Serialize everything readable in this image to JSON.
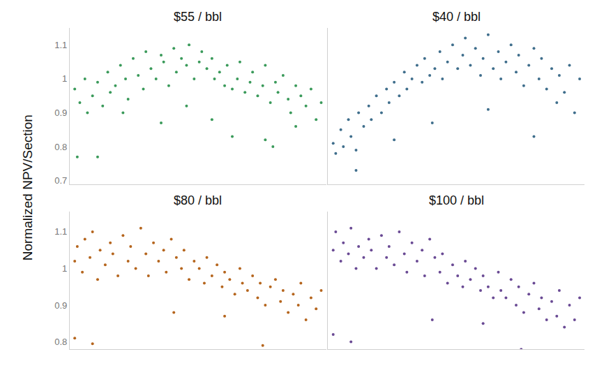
{
  "chart_data": {
    "type": "scatter",
    "y_label": "Normalized NPV/Section",
    "tick_labels": "y",
    "grid": false,
    "marker": "circle",
    "panels": [
      {
        "title": "$55 / bbl",
        "color": "#3a9a5a",
        "xlim": [
          -1,
          100
        ],
        "ylim": [
          0.69,
          1.15
        ],
        "yticks": [
          0.7,
          0.8,
          0.9,
          1,
          1.1
        ],
        "x": [
          1,
          3,
          5,
          6,
          8,
          10,
          12,
          14,
          15,
          17,
          19,
          21,
          22,
          24,
          26,
          28,
          29,
          31,
          33,
          35,
          36,
          38,
          40,
          41,
          43,
          45,
          46,
          48,
          50,
          51,
          53,
          55,
          56,
          58,
          60,
          61,
          63,
          65,
          66,
          68,
          70,
          71,
          73,
          75,
          76,
          78,
          80,
          81,
          83,
          85,
          86,
          88,
          90,
          92,
          94,
          96,
          98,
          2,
          10,
          63,
          76,
          79,
          35,
          55,
          88,
          20,
          45
        ],
        "values": [
          0.97,
          0.93,
          1.0,
          0.9,
          0.95,
          0.99,
          0.92,
          1.02,
          0.96,
          0.98,
          1.04,
          1.0,
          0.94,
          1.06,
          1.01,
          0.97,
          1.08,
          1.03,
          1.0,
          1.07,
          1.05,
          0.98,
          1.09,
          1.02,
          1.06,
          1.04,
          1.1,
          1.0,
          1.05,
          1.08,
          1.03,
          1.06,
          1.0,
          1.02,
          0.98,
          1.04,
          0.97,
          1.0,
          1.05,
          0.96,
          0.99,
          1.02,
          0.95,
          0.98,
          1.04,
          0.93,
          0.99,
          0.96,
          1.01,
          0.94,
          0.9,
          0.98,
          0.95,
          0.92,
          0.97,
          0.88,
          0.93,
          0.77,
          0.77,
          0.83,
          0.82,
          0.8,
          0.87,
          0.88,
          0.86,
          0.9,
          0.92
        ]
      },
      {
        "title": "$40 / bbl",
        "color": "#3f6e8c",
        "xlim": [
          -1,
          100
        ],
        "ylim": [
          0.69,
          1.15
        ],
        "yticks": [
          0.7,
          0.8,
          0.9,
          1,
          1.1
        ],
        "x": [
          1,
          2,
          4,
          5,
          7,
          8,
          10,
          11,
          13,
          15,
          16,
          18,
          20,
          22,
          23,
          25,
          27,
          29,
          30,
          32,
          34,
          36,
          37,
          39,
          41,
          43,
          44,
          46,
          48,
          50,
          52,
          53,
          55,
          57,
          59,
          60,
          62,
          64,
          66,
          67,
          69,
          71,
          73,
          74,
          76,
          78,
          80,
          82,
          83,
          85,
          87,
          89,
          90,
          92,
          94,
          96,
          98,
          10,
          25,
          40,
          80,
          62
        ],
        "values": [
          0.81,
          0.78,
          0.85,
          0.8,
          0.88,
          0.83,
          0.79,
          0.9,
          0.86,
          0.92,
          0.88,
          0.95,
          0.9,
          0.97,
          0.93,
          0.99,
          0.95,
          1.02,
          0.97,
          1.0,
          1.04,
          0.99,
          1.06,
          1.01,
          1.03,
          1.08,
          1.0,
          1.05,
          1.1,
          1.03,
          1.07,
          1.12,
          1.04,
          1.09,
          1.01,
          1.06,
          1.13,
          1.03,
          1.08,
          1.0,
          1.05,
          1.1,
          1.02,
          1.07,
          0.98,
          1.04,
          1.09,
          1.0,
          1.06,
          0.97,
          1.03,
          0.93,
          1.01,
          0.96,
          1.04,
          0.9,
          1.0,
          0.73,
          0.82,
          0.87,
          0.83,
          0.91
        ]
      },
      {
        "title": "$80 / bbl",
        "color": "#b5651d",
        "xlim": [
          -1,
          100
        ],
        "ylim": [
          0.78,
          1.155
        ],
        "yticks": [
          0.8,
          0.9,
          1,
          1.1
        ],
        "x": [
          1,
          2,
          4,
          5,
          7,
          8,
          10,
          11,
          13,
          15,
          16,
          18,
          20,
          22,
          23,
          25,
          27,
          29,
          30,
          32,
          34,
          36,
          37,
          39,
          41,
          43,
          44,
          46,
          48,
          50,
          52,
          53,
          55,
          57,
          59,
          60,
          62,
          64,
          66,
          67,
          69,
          71,
          73,
          74,
          76,
          78,
          80,
          82,
          83,
          85,
          87,
          89,
          90,
          92,
          94,
          96,
          98,
          1,
          8,
          75,
          40,
          60
        ],
        "values": [
          1.02,
          1.06,
          0.99,
          1.08,
          1.03,
          1.1,
          0.97,
          1.05,
          1.01,
          1.07,
          1.04,
          0.98,
          1.09,
          1.02,
          1.06,
          1.0,
          1.11,
          1.04,
          0.98,
          1.07,
          1.02,
          1.05,
          0.99,
          1.08,
          1.03,
          1.0,
          1.05,
          0.97,
          1.02,
          1.0,
          0.96,
          1.03,
          0.98,
          1.01,
          0.95,
          0.99,
          0.97,
          0.93,
          1.0,
          0.96,
          0.94,
          0.98,
          0.92,
          0.96,
          0.9,
          0.95,
          0.97,
          0.91,
          0.94,
          0.88,
          0.93,
          0.9,
          0.96,
          0.86,
          0.92,
          0.89,
          0.94,
          0.81,
          0.795,
          0.79,
          0.88,
          0.87
        ]
      },
      {
        "title": "$100 / bbl",
        "color": "#6a4a94",
        "xlim": [
          -1,
          100
        ],
        "ylim": [
          0.78,
          1.155
        ],
        "yticks": [
          0.8,
          0.9,
          1,
          1.1
        ],
        "x": [
          1,
          2,
          4,
          5,
          7,
          8,
          10,
          11,
          13,
          15,
          16,
          18,
          20,
          22,
          23,
          25,
          27,
          29,
          30,
          32,
          34,
          36,
          37,
          39,
          41,
          43,
          44,
          46,
          48,
          50,
          52,
          53,
          55,
          57,
          59,
          60,
          62,
          64,
          66,
          67,
          69,
          71,
          73,
          74,
          76,
          78,
          80,
          82,
          83,
          85,
          87,
          89,
          90,
          92,
          94,
          96,
          98,
          1,
          8,
          75,
          40,
          60
        ],
        "values": [
          1.05,
          1.1,
          1.02,
          1.07,
          1.04,
          1.11,
          1.0,
          1.06,
          1.03,
          1.08,
          1.05,
          1.0,
          1.09,
          1.03,
          1.06,
          1.01,
          1.1,
          1.04,
          0.99,
          1.07,
          1.02,
          1.05,
          0.98,
          1.08,
          1.03,
          0.99,
          1.04,
          0.96,
          1.01,
          0.98,
          0.95,
          1.02,
          0.97,
          1.0,
          0.94,
          0.98,
          0.95,
          0.92,
          0.99,
          0.94,
          0.92,
          0.97,
          0.9,
          0.95,
          0.88,
          0.93,
          0.96,
          0.89,
          0.92,
          0.86,
          0.91,
          0.87,
          0.94,
          0.84,
          0.9,
          0.86,
          0.92,
          0.82,
          0.8,
          0.78,
          0.86,
          0.85
        ]
      }
    ]
  }
}
